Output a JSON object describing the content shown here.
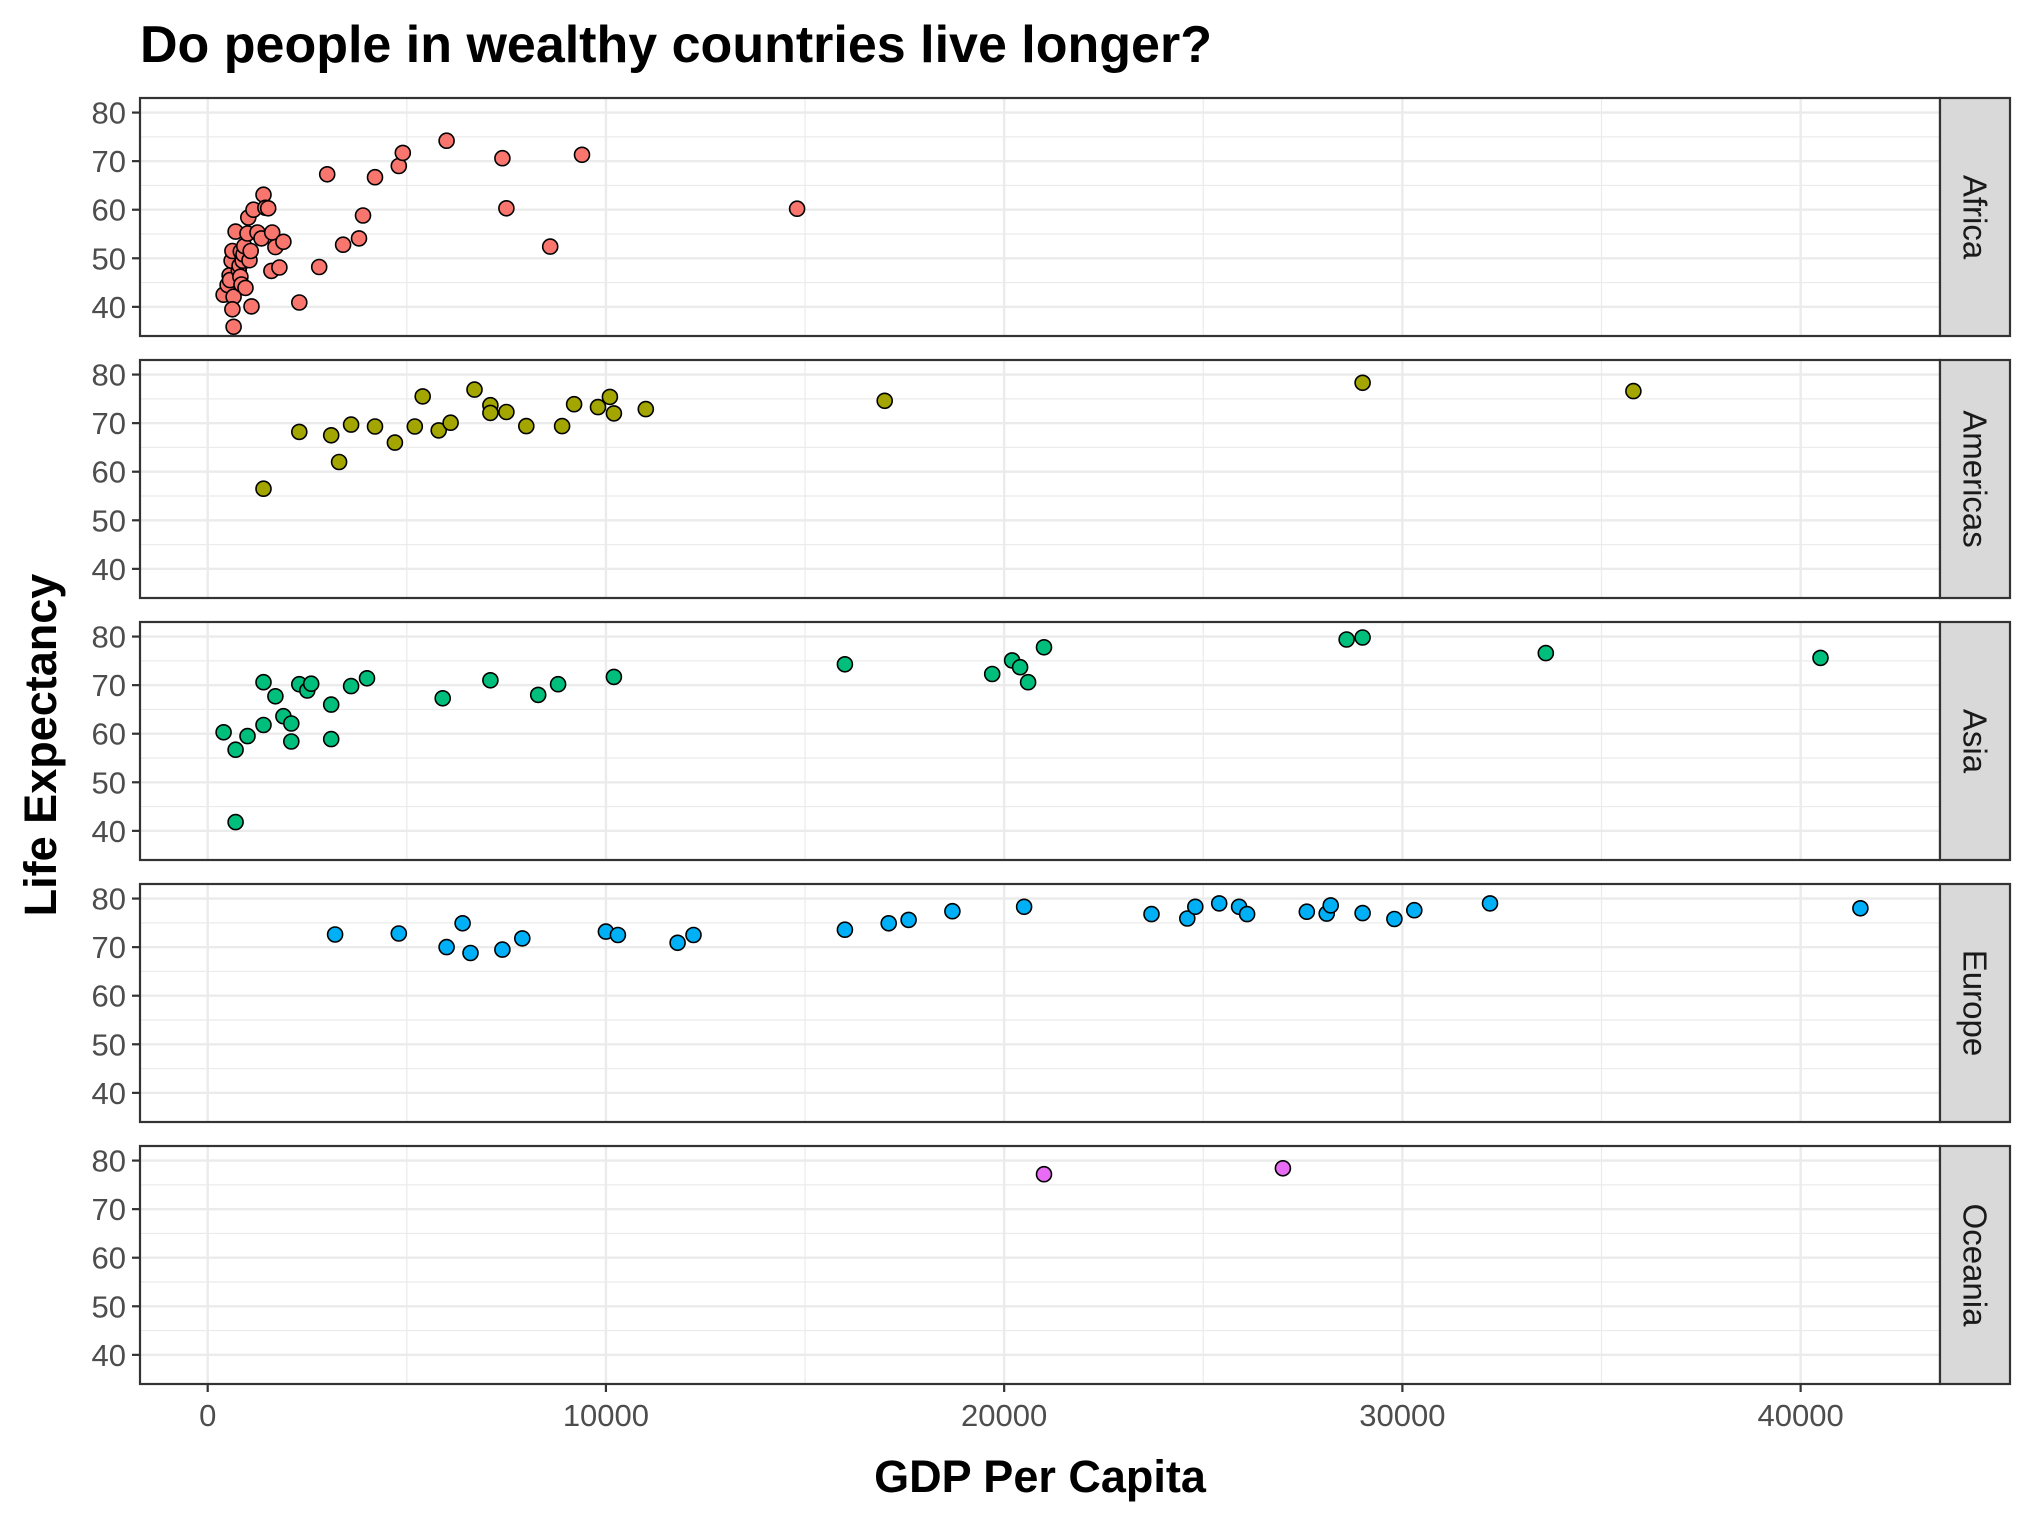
{
  "chart_data": {
    "type": "scatter",
    "title": "Do people in wealthy countries live longer?",
    "xlabel": "GDP Per Capita",
    "ylabel": "Life Expectancy",
    "xlim": [
      -1700,
      43500
    ],
    "ylim": [
      34,
      83
    ],
    "x_ticks": [
      0,
      10000,
      20000,
      30000,
      40000
    ],
    "x_tick_labels": [
      "0",
      "10000",
      "20000",
      "30000",
      "40000"
    ],
    "y_ticks": [
      40,
      50,
      60,
      70,
      80
    ],
    "y_tick_labels": [
      "40",
      "50",
      "60",
      "70",
      "80"
    ],
    "grid": true,
    "legend": "none",
    "facets": [
      {
        "name": "Africa",
        "color": "#F8766D",
        "points": [
          [
            400,
            42.5
          ],
          [
            500,
            44.5
          ],
          [
            550,
            46.5
          ],
          [
            560,
            45.5
          ],
          [
            600,
            49.5
          ],
          [
            620,
            51.5
          ],
          [
            650,
            42.1
          ],
          [
            620,
            39.5
          ],
          [
            650,
            35.9
          ],
          [
            700,
            55.5
          ],
          [
            780,
            47.5
          ],
          [
            800,
            48.5
          ],
          [
            820,
            46.2
          ],
          [
            830,
            51.4
          ],
          [
            850,
            44.6
          ],
          [
            880,
            49.5
          ],
          [
            900,
            50.8
          ],
          [
            920,
            52.5
          ],
          [
            950,
            43.9
          ],
          [
            1000,
            55.1
          ],
          [
            1020,
            58.4
          ],
          [
            1050,
            49.6
          ],
          [
            1080,
            51.5
          ],
          [
            1100,
            40.1
          ],
          [
            1150,
            60.0
          ],
          [
            1250,
            55.3
          ],
          [
            1350,
            54.1
          ],
          [
            1400,
            63.1
          ],
          [
            1450,
            60.4
          ],
          [
            1520,
            60.3
          ],
          [
            1600,
            47.4
          ],
          [
            1620,
            55.3
          ],
          [
            1700,
            52.3
          ],
          [
            1800,
            48.1
          ],
          [
            1900,
            53.4
          ],
          [
            2300,
            40.9
          ],
          [
            2800,
            48.2
          ],
          [
            3000,
            67.3
          ],
          [
            3400,
            52.8
          ],
          [
            3800,
            54.1
          ],
          [
            3900,
            58.8
          ],
          [
            4200,
            66.7
          ],
          [
            4800,
            69.0
          ],
          [
            4900,
            71.7
          ],
          [
            6000,
            74.2
          ],
          [
            7400,
            70.6
          ],
          [
            7500,
            60.3
          ],
          [
            8600,
            52.4
          ],
          [
            9400,
            71.3
          ],
          [
            14800,
            60.2
          ]
        ]
      },
      {
        "name": "Americas",
        "color": "#A3A500",
        "points": [
          [
            1400,
            56.5
          ],
          [
            2300,
            68.2
          ],
          [
            3100,
            67.5
          ],
          [
            3300,
            62.0
          ],
          [
            3600,
            69.7
          ],
          [
            4200,
            69.3
          ],
          [
            4700,
            66.0
          ],
          [
            5200,
            69.3
          ],
          [
            5400,
            75.5
          ],
          [
            5800,
            68.5
          ],
          [
            6100,
            70.1
          ],
          [
            6700,
            76.9
          ],
          [
            7100,
            73.7
          ],
          [
            7100,
            72.1
          ],
          [
            7500,
            72.3
          ],
          [
            8000,
            69.4
          ],
          [
            8900,
            69.4
          ],
          [
            9200,
            73.9
          ],
          [
            9800,
            73.3
          ],
          [
            10100,
            75.4
          ],
          [
            10200,
            72.0
          ],
          [
            11000,
            72.9
          ],
          [
            17000,
            74.6
          ],
          [
            29000,
            78.3
          ],
          [
            35800,
            76.6
          ]
        ]
      },
      {
        "name": "Asia",
        "color": "#00BF7D",
        "points": [
          [
            400,
            60.3
          ],
          [
            700,
            56.7
          ],
          [
            700,
            41.8
          ],
          [
            1000,
            59.5
          ],
          [
            1400,
            70.6
          ],
          [
            1400,
            61.8
          ],
          [
            1700,
            67.7
          ],
          [
            1900,
            63.6
          ],
          [
            2100,
            58.4
          ],
          [
            2100,
            62.1
          ],
          [
            2300,
            70.2
          ],
          [
            2500,
            68.9
          ],
          [
            2600,
            70.3
          ],
          [
            3100,
            66.0
          ],
          [
            3100,
            58.9
          ],
          [
            3600,
            69.8
          ],
          [
            4000,
            71.4
          ],
          [
            5900,
            67.3
          ],
          [
            7100,
            71.0
          ],
          [
            8300,
            68.0
          ],
          [
            8800,
            70.2
          ],
          [
            10200,
            71.7
          ],
          [
            16000,
            74.3
          ],
          [
            19700,
            72.3
          ],
          [
            20200,
            75.1
          ],
          [
            20400,
            73.7
          ],
          [
            20600,
            70.6
          ],
          [
            21000,
            77.8
          ],
          [
            28600,
            79.4
          ],
          [
            29000,
            79.8
          ],
          [
            33600,
            76.6
          ],
          [
            40500,
            75.6
          ]
        ]
      },
      {
        "name": "Europe",
        "color": "#00B0F6",
        "points": [
          [
            3200,
            72.6
          ],
          [
            4800,
            72.8
          ],
          [
            6000,
            70.0
          ],
          [
            6400,
            74.9
          ],
          [
            6600,
            68.8
          ],
          [
            7400,
            69.5
          ],
          [
            7900,
            71.8
          ],
          [
            10000,
            73.2
          ],
          [
            10300,
            72.5
          ],
          [
            11800,
            70.9
          ],
          [
            12200,
            72.5
          ],
          [
            16000,
            73.6
          ],
          [
            17100,
            74.9
          ],
          [
            17600,
            75.6
          ],
          [
            18700,
            77.4
          ],
          [
            20500,
            78.3
          ],
          [
            23700,
            76.8
          ],
          [
            24600,
            75.9
          ],
          [
            24800,
            78.3
          ],
          [
            25400,
            79.0
          ],
          [
            25900,
            78.3
          ],
          [
            26100,
            76.8
          ],
          [
            27600,
            77.3
          ],
          [
            28100,
            76.9
          ],
          [
            28200,
            78.6
          ],
          [
            29000,
            77.0
          ],
          [
            29800,
            75.8
          ],
          [
            30300,
            77.6
          ],
          [
            32200,
            79.0
          ],
          [
            41500,
            78.0
          ]
        ]
      },
      {
        "name": "Oceania",
        "color": "#E76BF3",
        "points": [
          [
            21000,
            77.2
          ],
          [
            27000,
            78.4
          ]
        ]
      }
    ]
  }
}
